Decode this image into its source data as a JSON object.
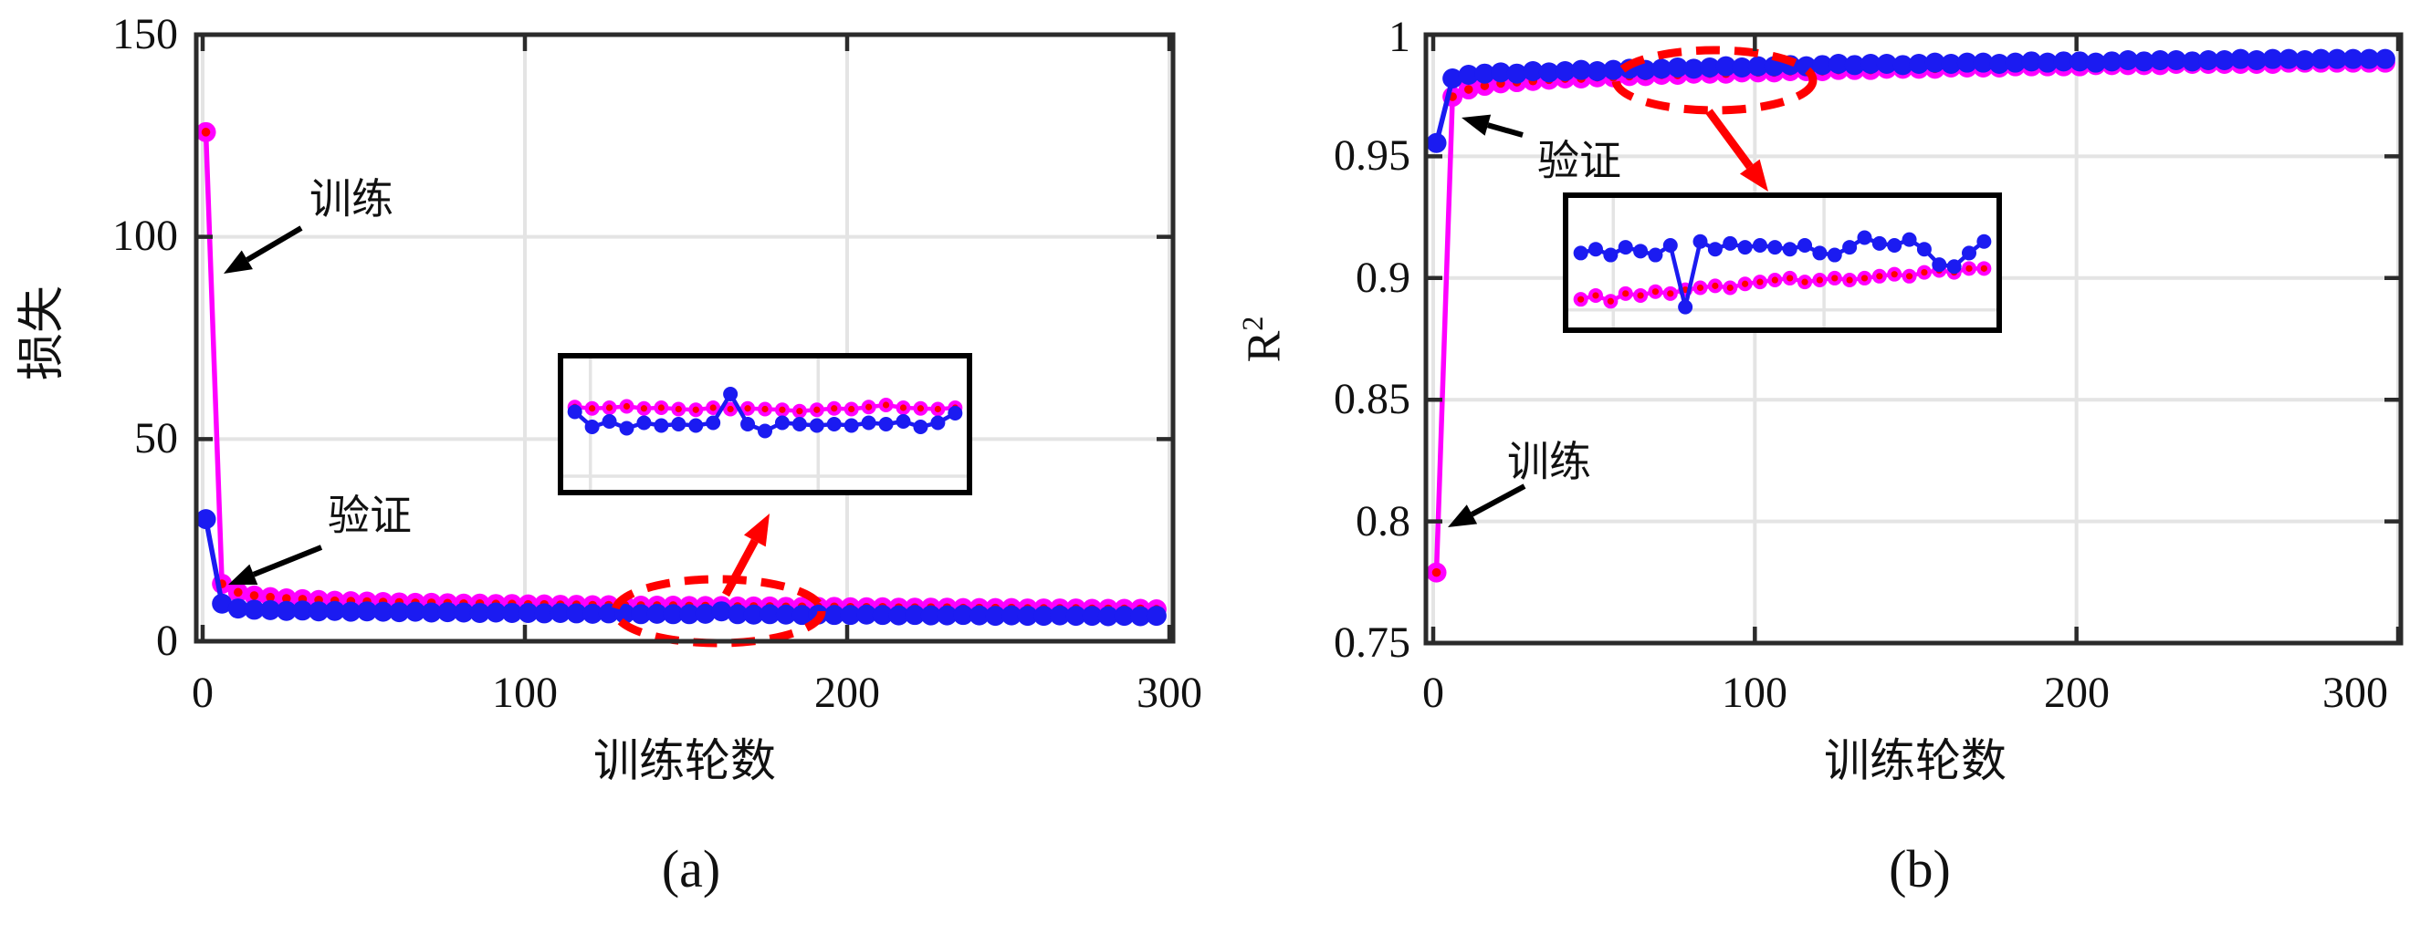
{
  "figure_caption_a": "(a)",
  "figure_caption_b": "(b)",
  "colors": {
    "train": "#FF00FF",
    "train_marker_center": "#FF0000",
    "val": "#1B1BF1",
    "accent_red": "#FF0000",
    "grid": "#E4E4E4",
    "frame": "#2B2B2B",
    "text": "#111111"
  },
  "chart_data": [
    {
      "id": "a",
      "type": "line",
      "xlabel": "训练轮数",
      "ylabel": "损失",
      "caption": "(a)",
      "xlim": [
        0,
        300
      ],
      "ylim": [
        0,
        150
      ],
      "xticks": [
        0,
        100,
        200,
        300
      ],
      "xticklabels": [
        "0",
        "100",
        "200",
        "300"
      ],
      "yticks": [
        0,
        50,
        100,
        150
      ],
      "yticklabels": [
        "0",
        "50",
        "100",
        "150"
      ],
      "grid": "on",
      "annotations": {
        "train": "训练",
        "val": "验证"
      },
      "series": [
        {
          "name": "训练",
          "color": "#FF00FF",
          "marker_center": "#FF0000",
          "x": [
            1,
            6,
            11,
            16,
            21,
            26,
            31,
            36,
            41,
            46,
            51,
            56,
            61,
            66,
            71,
            76,
            81,
            86,
            91,
            96,
            101,
            106,
            111,
            116,
            121,
            126,
            131,
            136,
            141,
            146,
            151,
            156,
            161,
            166,
            171,
            176,
            181,
            186,
            191,
            196,
            201,
            206,
            211,
            216,
            221,
            226,
            231,
            236,
            241,
            246,
            251,
            256,
            261,
            266,
            271,
            276,
            281,
            286,
            291,
            296
          ],
          "y": [
            125.9,
            14.2,
            12.1,
            11.3,
            10.9,
            10.6,
            10.4,
            10.2,
            10.0,
            9.9,
            9.8,
            9.7,
            9.6,
            9.5,
            9.5,
            9.4,
            9.3,
            9.3,
            9.2,
            9.2,
            9.1,
            9.1,
            9.0,
            9.0,
            8.9,
            8.9,
            8.9,
            8.8,
            8.8,
            8.8,
            8.7,
            8.7,
            8.7,
            8.6,
            8.6,
            8.6,
            8.5,
            8.5,
            8.5,
            8.5,
            8.4,
            8.4,
            8.4,
            8.3,
            8.3,
            8.3,
            8.3,
            8.2,
            8.2,
            8.2,
            8.2,
            8.1,
            8.1,
            8.1,
            8.1,
            8.0,
            8.0,
            8.0,
            8.0,
            7.9
          ]
        },
        {
          "name": "验证",
          "color": "#1B1BF1",
          "x": [
            1,
            6,
            11,
            16,
            21,
            26,
            31,
            36,
            41,
            46,
            51,
            56,
            61,
            66,
            71,
            76,
            81,
            86,
            91,
            96,
            101,
            106,
            111,
            116,
            121,
            126,
            131,
            136,
            141,
            146,
            151,
            156,
            161,
            166,
            171,
            176,
            181,
            186,
            191,
            196,
            201,
            206,
            211,
            216,
            221,
            226,
            231,
            236,
            241,
            246,
            251,
            256,
            261,
            266,
            271,
            276,
            281,
            286,
            291,
            296
          ],
          "y": [
            30.2,
            9.3,
            8.1,
            7.8,
            7.7,
            7.5,
            7.6,
            7.4,
            7.5,
            7.3,
            7.4,
            7.3,
            7.2,
            7.3,
            7.1,
            7.2,
            7.1,
            7.0,
            7.1,
            7.0,
            7.0,
            6.9,
            7.0,
            6.9,
            6.8,
            6.9,
            6.8,
            6.7,
            6.8,
            6.7,
            6.7,
            6.8,
            7.4,
            6.7,
            6.6,
            6.7,
            6.6,
            6.5,
            6.6,
            6.5,
            6.5,
            6.6,
            6.5,
            6.4,
            6.5,
            6.4,
            6.4,
            6.5,
            6.4,
            6.3,
            6.4,
            6.3,
            6.3,
            6.4,
            6.3,
            6.3,
            6.2,
            6.3,
            6.2,
            6.3
          ]
        }
      ],
      "inset": {
        "desc": "zoom of epochs 130-200",
        "x_range": [
          130,
          200
        ],
        "ylim": [
          2.5,
          12.5
        ],
        "series": [
          {
            "name": "训练",
            "color": "#FF00FF",
            "marker_center": "#FF0000",
            "y": [
              8.75,
              8.65,
              8.7,
              8.8,
              8.65,
              8.7,
              8.6,
              8.55,
              8.7,
              8.6,
              8.65,
              8.6,
              8.55,
              8.45,
              8.55,
              8.65,
              8.6,
              8.75,
              8.9,
              8.7,
              8.65,
              8.6,
              8.7
            ]
          },
          {
            "name": "验证",
            "color": "#1B1BF1",
            "y": [
              8.4,
              7.3,
              7.7,
              7.2,
              7.6,
              7.4,
              7.5,
              7.4,
              7.6,
              9.7,
              7.5,
              7.0,
              7.6,
              7.5,
              7.4,
              7.5,
              7.4,
              7.6,
              7.5,
              7.7,
              7.3,
              7.6,
              8.3
            ]
          }
        ]
      }
    },
    {
      "id": "b",
      "type": "line",
      "xlabel": "训练轮数",
      "ylabel": "R2",
      "ylabel_base": "R",
      "ylabel_sup": "2",
      "caption": "(b)",
      "xlim": [
        0,
        300
      ],
      "ylim": [
        0.75,
        1.0
      ],
      "xticks": [
        0,
        100,
        200,
        300
      ],
      "xticklabels": [
        "0",
        "100",
        "200",
        "300"
      ],
      "yticks": [
        0.75,
        0.8,
        0.85,
        0.9,
        0.95,
        1.0
      ],
      "yticklabels": [
        "0.75",
        "0.8",
        "0.85",
        "0.9",
        "0.95",
        "1"
      ],
      "grid": "on",
      "annotations": {
        "train": "训练",
        "val": "验证"
      },
      "series": [
        {
          "name": "训练",
          "color": "#FF00FF",
          "marker_center": "#FF0000",
          "x": [
            1,
            6,
            11,
            16,
            21,
            26,
            31,
            36,
            41,
            46,
            51,
            56,
            61,
            66,
            71,
            76,
            81,
            86,
            91,
            96,
            101,
            106,
            111,
            116,
            121,
            126,
            131,
            136,
            141,
            146,
            151,
            156,
            161,
            166,
            171,
            176,
            181,
            186,
            191,
            196,
            201,
            206,
            211,
            216,
            221,
            226,
            231,
            236,
            241,
            246,
            251,
            256,
            261,
            266,
            271,
            276,
            281,
            286,
            291,
            296
          ],
          "y": [
            0.779,
            0.9745,
            0.9775,
            0.979,
            0.98,
            0.9805,
            0.981,
            0.9815,
            0.982,
            0.982,
            0.9825,
            0.9825,
            0.983,
            0.983,
            0.9835,
            0.9835,
            0.984,
            0.984,
            0.984,
            0.9845,
            0.9845,
            0.9845,
            0.985,
            0.985,
            0.985,
            0.9855,
            0.9855,
            0.9855,
            0.986,
            0.986,
            0.986,
            0.986,
            0.9865,
            0.9865,
            0.9865,
            0.9865,
            0.987,
            0.987,
            0.987,
            0.987,
            0.987,
            0.9875,
            0.9875,
            0.9875,
            0.9875,
            0.9875,
            0.988,
            0.988,
            0.988,
            0.988,
            0.988,
            0.988,
            0.988,
            0.9885,
            0.9885,
            0.9885,
            0.9885,
            0.9885,
            0.9885,
            0.9885
          ]
        },
        {
          "name": "验证",
          "color": "#1B1BF1",
          "x": [
            1,
            6,
            11,
            16,
            21,
            26,
            31,
            36,
            41,
            46,
            51,
            56,
            61,
            66,
            71,
            76,
            81,
            86,
            91,
            96,
            101,
            106,
            111,
            116,
            121,
            126,
            131,
            136,
            141,
            146,
            151,
            156,
            161,
            166,
            171,
            176,
            181,
            186,
            191,
            196,
            201,
            206,
            211,
            216,
            221,
            226,
            231,
            236,
            241,
            246,
            251,
            256,
            261,
            266,
            271,
            276,
            281,
            286,
            291,
            296
          ],
          "y": [
            0.9555,
            0.982,
            0.9835,
            0.984,
            0.9845,
            0.984,
            0.985,
            0.9845,
            0.985,
            0.9855,
            0.985,
            0.9855,
            0.986,
            0.9855,
            0.986,
            0.9865,
            0.986,
            0.9865,
            0.987,
            0.9865,
            0.987,
            0.987,
            0.9875,
            0.987,
            0.9875,
            0.988,
            0.9875,
            0.988,
            0.988,
            0.9875,
            0.988,
            0.9885,
            0.988,
            0.9885,
            0.9885,
            0.988,
            0.9885,
            0.989,
            0.9885,
            0.989,
            0.989,
            0.9885,
            0.989,
            0.9895,
            0.989,
            0.9895,
            0.9895,
            0.989,
            0.9895,
            0.9895,
            0.99,
            0.9895,
            0.99,
            0.99,
            0.9895,
            0.99,
            0.99,
            0.99,
            0.99,
            0.99
          ]
        }
      ],
      "inset": {
        "desc": "zoom of epochs 55-120",
        "x_range": [
          55,
          120
        ],
        "ylim": [
          0.983,
          0.99
        ],
        "series": [
          {
            "name": "验证",
            "color": "#1B1BF1",
            "y": [
              0.987,
              0.9872,
              0.9869,
              0.9873,
              0.9871,
              0.9869,
              0.9874,
              0.9842,
              0.9876,
              0.9872,
              0.9875,
              0.9873,
              0.9874,
              0.9873,
              0.9872,
              0.9874,
              0.987,
              0.9869,
              0.9873,
              0.9878,
              0.9875,
              0.9874,
              0.9877,
              0.9872,
              0.9864,
              0.9863,
              0.987,
              0.9876
            ]
          },
          {
            "name": "训练",
            "color": "#FF00FF",
            "marker_center": "#FF0000",
            "y": [
              0.9846,
              0.9848,
              0.9845,
              0.9849,
              0.9848,
              0.985,
              0.9849,
              0.9851,
              0.9852,
              0.9853,
              0.9852,
              0.9854,
              0.9855,
              0.9856,
              0.9857,
              0.9855,
              0.9856,
              0.9857,
              0.9856,
              0.9857,
              0.9858,
              0.9859,
              0.9858,
              0.986,
              0.9861,
              0.986,
              0.9862,
              0.9862
            ]
          }
        ]
      }
    }
  ]
}
